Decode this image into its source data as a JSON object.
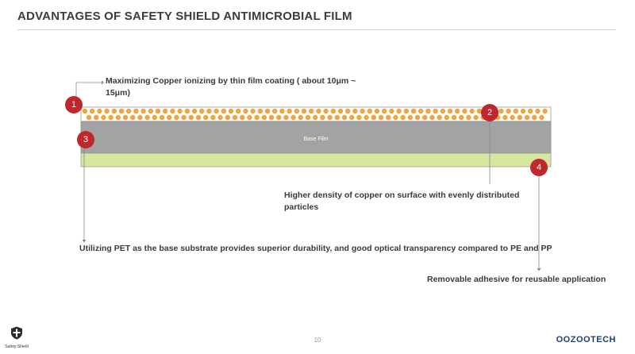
{
  "header": {
    "title": "ADVANTAGES OF SAFETY SHIELD ANTIMICROBIAL FILM"
  },
  "diagram": {
    "base_film_label": "Base Film",
    "copper_color": "#f0a43c",
    "base_color": "#a3a3a3",
    "adhesive_color": "#d5e69e",
    "marker_color": "#c0262d",
    "markers": [
      "1",
      "2",
      "3",
      "4"
    ],
    "callouts": {
      "copper_coating": [
        "Maximizing Copper ionizing by thin film coating ( about 10μm ~",
        "15μm)"
      ],
      "copper_density": [
        "Higher density of copper on surface with evenly distributed",
        "particles"
      ],
      "pet_substrate": "Utilizing PET as the base substrate provides superior durability, and good optical transparency compared to PE and PP",
      "adhesive": "Removable adhesive for reusable application"
    }
  },
  "footer": {
    "page_number": "10",
    "left_logo_text": "Safety Shield",
    "right_logo_text": "OOZOOTECH"
  }
}
